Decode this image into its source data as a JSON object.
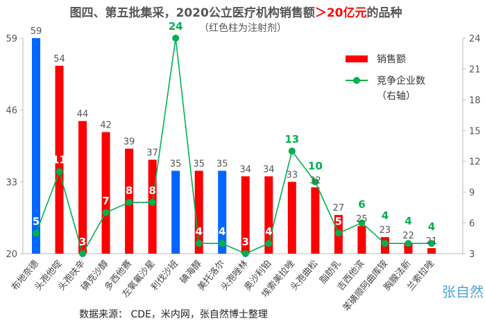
{
  "chart_data": {
    "type": "bar+line",
    "title": "图四、第五批集采，2020公立医疗机构销售额",
    "title_highlight": "＞20亿元",
    "title_suffix": "的品种",
    "subtitle": "（红色柱为注射剂）",
    "categories": [
      "布地奈德",
      "头孢他啶",
      "头孢呋辛",
      "碘克沙醇",
      "多西他赛",
      "左氧氟沙星",
      "利伐沙班",
      "碘海醇",
      "美托洛尔",
      "头孢唑林",
      "奥沙利铂",
      "埃索美拉唑",
      "头孢曲松",
      "脂肪乳",
      "吉西他滨",
      "苯磺顺阿曲库铵",
      "胸腺法新",
      "兰索拉唑"
    ],
    "series": [
      {
        "name": "销售额",
        "type": "bar",
        "axis": "left",
        "values": [
          59,
          54,
          44,
          42,
          39,
          37,
          35,
          35,
          35,
          34,
          34,
          33,
          32,
          27,
          25,
          23,
          22,
          21
        ],
        "colors": [
          "#0066ff",
          "#ff0000",
          "#ff0000",
          "#ff0000",
          "#ff0000",
          "#ff0000",
          "#0066ff",
          "#ff0000",
          "#0066ff",
          "#ff0000",
          "#ff0000",
          "#ff0000",
          "#ff0000",
          "#ff0000",
          "#ff0000",
          "#ff0000",
          "#ff0000",
          "#ff0000"
        ]
      },
      {
        "name": "竞争企业数（右轴）",
        "type": "line",
        "axis": "right",
        "values": [
          5,
          11,
          3,
          7,
          8,
          8,
          24,
          4,
          4,
          3,
          4,
          13,
          10,
          5,
          6,
          4,
          4,
          4
        ]
      }
    ],
    "y_left": {
      "range": [
        20,
        59
      ],
      "ticks": [
        "20",
        "33",
        "46",
        "59"
      ]
    },
    "y_right": {
      "range": [
        3,
        24
      ],
      "ticks": [
        "3",
        "6",
        "9",
        "12",
        "15",
        "18",
        "21",
        "24"
      ]
    },
    "legend": {
      "position": "top-right",
      "bar_label": "销售额",
      "line_label": "竞争企业数",
      "line_label2": "（右轴）"
    },
    "colors": {
      "injection": "#ff0000",
      "oral": "#0066ff",
      "line": "#00b050"
    },
    "source": "数据来源：  CDE，米内网，张自然博士整理",
    "watermark": "张自然"
  }
}
